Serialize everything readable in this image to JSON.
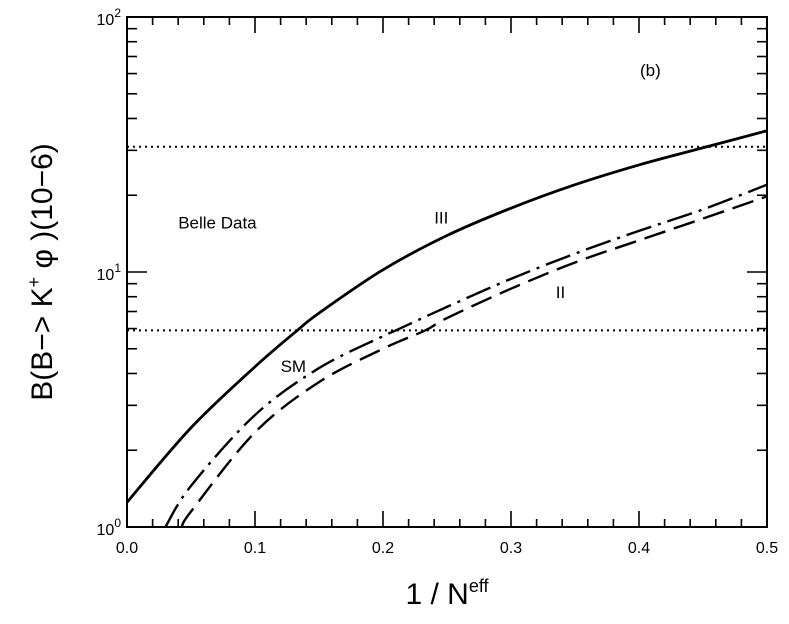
{
  "chart_data": {
    "type": "line",
    "panel_label": "(b)",
    "xlabel": {
      "main": "1 / N",
      "sup": "eff"
    },
    "ylabel": {
      "pre": "B(B−> K",
      "sup": "+",
      "post": " φ )(10−6)"
    },
    "xlim": [
      0.0,
      0.5
    ],
    "ylim": [
      1,
      100
    ],
    "y_scale": "log",
    "x_ticks": [
      "0.0",
      "0.1",
      "0.2",
      "0.3",
      "0.4",
      "0.5"
    ],
    "y_ticks": [
      {
        "value": 1,
        "base": "10",
        "exp": "0"
      },
      {
        "value": 10,
        "base": "10",
        "exp": "1"
      },
      {
        "value": 100,
        "base": "10",
        "exp": "2"
      }
    ],
    "grid": false,
    "reference_lines": [
      {
        "y": 31,
        "style": "dotted"
      },
      {
        "y": 5.9,
        "style": "dotted"
      }
    ],
    "series": [
      {
        "name": "III",
        "style": "solid",
        "x": [
          0.0,
          0.05,
          0.1,
          0.133,
          0.15,
          0.2,
          0.25,
          0.3,
          0.35,
          0.4,
          0.45,
          0.5
        ],
        "y": [
          1.25,
          2.45,
          4.25,
          5.9,
          6.9,
          10.2,
          13.9,
          17.8,
          22.0,
          26.3,
          30.7,
          35.8
        ]
      },
      {
        "name": "SM",
        "style": "dash-dot",
        "x": [
          0.03,
          0.05,
          0.1,
          0.15,
          0.2,
          0.21,
          0.25,
          0.3,
          0.35,
          0.4,
          0.45,
          0.5
        ],
        "y": [
          1.0,
          1.45,
          2.75,
          4.2,
          5.6,
          5.9,
          7.3,
          9.4,
          11.8,
          14.5,
          17.6,
          22.0
        ]
      },
      {
        "name": "II",
        "style": "long-dash",
        "x": [
          0.043,
          0.05,
          0.1,
          0.15,
          0.2,
          0.233,
          0.25,
          0.3,
          0.35,
          0.4,
          0.45,
          0.5
        ],
        "y": [
          1.0,
          1.15,
          2.35,
          3.7,
          5.0,
          5.9,
          6.6,
          8.6,
          10.9,
          13.3,
          16.2,
          19.8
        ]
      }
    ],
    "annotations": [
      {
        "text": "Belle Data",
        "x": 0.04,
        "y": 14.8
      },
      {
        "text": "III",
        "x": 0.24,
        "y": 15.5
      },
      {
        "text": "II",
        "x": 0.335,
        "y": 7.9
      },
      {
        "text": "SM",
        "x": 0.12,
        "y": 4.05
      }
    ]
  }
}
